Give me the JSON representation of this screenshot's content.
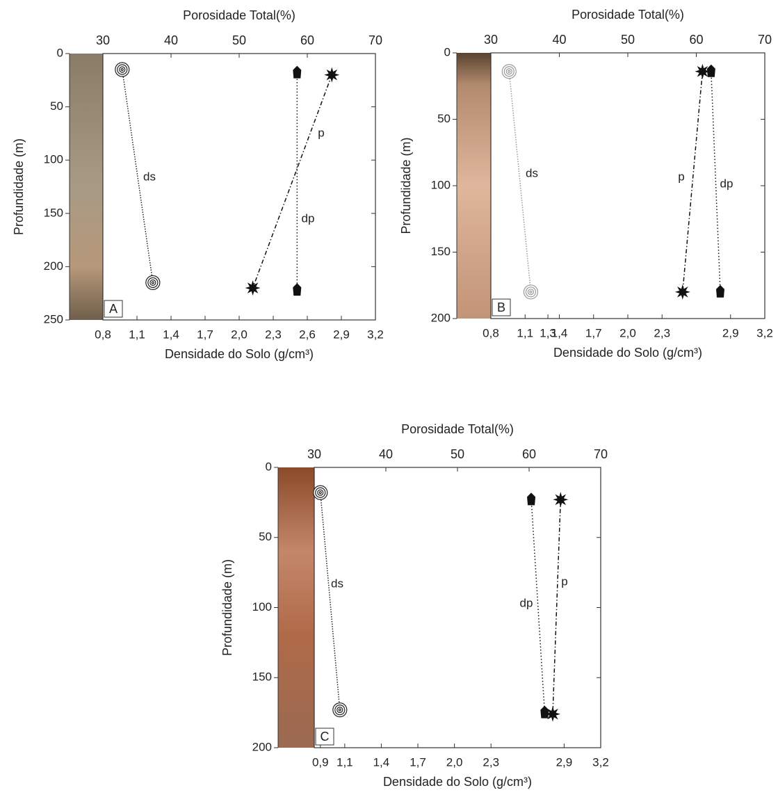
{
  "chart_data": [
    {
      "type": "line",
      "panel_label": "A",
      "x2label": "Porosidade Total(%)",
      "xlabel": "Densidade do Solo (g/cm³)",
      "ylabel": "Profundidade (m)",
      "ylim": [
        0,
        250
      ],
      "yticks": [
        0,
        50,
        100,
        150,
        200,
        250
      ],
      "y_inverted": true,
      "xlim": [
        0.8,
        3.2
      ],
      "xticks": [
        {
          "value": 0.8,
          "label": "0,8"
        },
        {
          "value": 1.1,
          "label": "1,1"
        },
        {
          "value": 1.4,
          "label": "1,4"
        },
        {
          "value": 1.7,
          "label": "1,7"
        },
        {
          "value": 2.0,
          "label": "2,0"
        },
        {
          "value": 2.3,
          "label": "2,3"
        },
        {
          "value": 2.6,
          "label": "2,6"
        },
        {
          "value": 2.9,
          "label": "2,9"
        },
        {
          "value": 3.2,
          "label": "3,2"
        }
      ],
      "x2lim": [
        30,
        70
      ],
      "x2ticks": [
        30,
        40,
        50,
        60,
        70
      ],
      "series": [
        {
          "name": "ds",
          "axis": "x",
          "marker": "spiral",
          "color": "#222222",
          "x": [
            0.97,
            1.24
          ],
          "values": [
            15,
            215
          ]
        },
        {
          "name": "dp",
          "axis": "x",
          "marker": "pentagon",
          "color": "#111111",
          "x": [
            2.51,
            2.51
          ],
          "values": [
            18,
            222
          ]
        },
        {
          "name": "p",
          "axis": "x2",
          "marker": "star",
          "color": "#111111",
          "x": [
            63.6,
            52
          ],
          "values": [
            20,
            220
          ]
        }
      ]
    },
    {
      "type": "line",
      "panel_label": "B",
      "x2label": "Porosidade Total(%)",
      "xlabel": "Densidade do Solo (g/cm³)",
      "ylabel": "Profundidade (m)",
      "ylim": [
        0,
        200
      ],
      "yticks": [
        0,
        50,
        100,
        150,
        200
      ],
      "y_inverted": true,
      "xlim": [
        0.8,
        3.2
      ],
      "xticks": [
        {
          "value": 0.8,
          "label": "0,8"
        },
        {
          "value": 1.1,
          "label": "1,1"
        },
        {
          "value": 1.3,
          "label": "1,3"
        },
        {
          "value": 1.4,
          "label": "1,4"
        },
        {
          "value": 1.7,
          "label": "1,7"
        },
        {
          "value": 2.0,
          "label": "2,0"
        },
        {
          "value": 2.3,
          "label": "2,3"
        },
        {
          "value": 2.9,
          "label": "2,9"
        },
        {
          "value": 3.2,
          "label": "3,2"
        }
      ],
      "x2lim": [
        30,
        70
      ],
      "x2ticks": [
        30,
        40,
        50,
        60,
        70
      ],
      "series": [
        {
          "name": "ds",
          "axis": "x",
          "marker": "spiral",
          "color": "#999999",
          "x": [
            0.96,
            1.15
          ],
          "values": [
            14,
            180
          ]
        },
        {
          "name": "dp",
          "axis": "x",
          "marker": "pentagon",
          "color": "#111111",
          "x": [
            2.73,
            2.81
          ],
          "values": [
            14,
            180
          ]
        },
        {
          "name": "p",
          "axis": "x2",
          "marker": "star",
          "color": "#111111",
          "x": [
            60.9,
            58
          ],
          "values": [
            14,
            180
          ]
        }
      ]
    },
    {
      "type": "line",
      "panel_label": "C",
      "x2label": "Porosidade Total(%)",
      "xlabel": "Densidade do Solo (g/cm³)",
      "ylabel": "Profundidade (m)",
      "ylim": [
        0,
        200
      ],
      "yticks": [
        0,
        50,
        100,
        150,
        200
      ],
      "y_inverted": true,
      "xlim": [
        0.85,
        3.2
      ],
      "xticks": [
        {
          "value": 0.9,
          "label": "0,9"
        },
        {
          "value": 1.1,
          "label": "1,1"
        },
        {
          "value": 1.4,
          "label": "1,4"
        },
        {
          "value": 1.7,
          "label": "1,7"
        },
        {
          "value": 2.0,
          "label": "2,0"
        },
        {
          "value": 2.3,
          "label": "2,3"
        },
        {
          "value": 2.9,
          "label": "2,9"
        },
        {
          "value": 3.2,
          "label": "3,2"
        }
      ],
      "x2lim": [
        30,
        70
      ],
      "x2ticks": [
        30,
        40,
        50,
        60,
        70
      ],
      "series": [
        {
          "name": "ds",
          "axis": "x",
          "marker": "spiral",
          "color": "#222222",
          "x": [
            0.9,
            1.06
          ],
          "values": [
            18,
            173
          ]
        },
        {
          "name": "dp",
          "axis": "x",
          "marker": "pentagon",
          "color": "#111111",
          "x": [
            2.63,
            2.74
          ],
          "values": [
            23,
            175
          ]
        },
        {
          "name": "p",
          "axis": "x2",
          "marker": "star",
          "color": "#111111",
          "x": [
            64.4,
            63.3
          ],
          "values": [
            23,
            176
          ]
        }
      ]
    }
  ]
}
